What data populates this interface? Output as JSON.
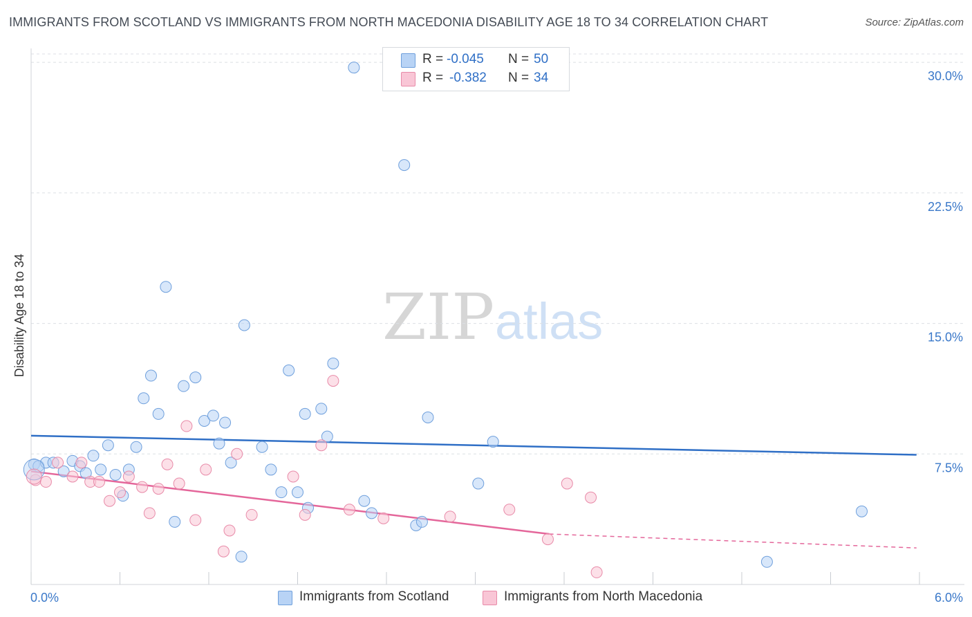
{
  "title": "IMMIGRANTS FROM SCOTLAND VS IMMIGRANTS FROM NORTH MACEDONIA DISABILITY AGE 18 TO 34 CORRELATION CHART",
  "source": "Source: ZipAtlas.com",
  "watermark": {
    "zip": "ZIP",
    "atlas": "atlas"
  },
  "legend": {
    "rows": [
      {
        "r_label": "R =",
        "r_value": "-0.045",
        "n_label": "N =",
        "n_value": "50",
        "color": "#b8d3f5"
      },
      {
        "r_label": "R =",
        "r_value": "-0.382",
        "n_label": "N =",
        "n_value": "34",
        "color": "#f9c6d6"
      }
    ]
  },
  "bottom_legend": [
    {
      "label": "Immigrants from Scotland",
      "color": "#b8d3f5"
    },
    {
      "label": "Immigrants from North Macedonia",
      "color": "#f9c6d6"
    }
  ],
  "chart_data": {
    "type": "scatter",
    "title": "IMMIGRANTS FROM SCOTLAND VS IMMIGRANTS FROM NORTH MACEDONIA DISABILITY AGE 18 TO 34 CORRELATION CHART",
    "xlabel": "",
    "ylabel": "Disability Age 18 to 34",
    "xlim": [
      0,
      6
    ],
    "ylim": [
      0,
      30.8
    ],
    "x_tick_labels": [
      "0.0%",
      "6.0%"
    ],
    "y_ticks": [
      7.5,
      15.0,
      22.5,
      30.0
    ],
    "y_tick_labels": [
      "7.5%",
      "15.0%",
      "22.5%",
      "30.0%"
    ],
    "grid": true,
    "legend_position": "top-center",
    "series": [
      {
        "name": "Immigrants from Scotland",
        "color": "#b8d3f5",
        "stroke": "#6e9fdc",
        "trend_color": "#2f6fc6",
        "trend": {
          "x": [
            0,
            5.98
          ],
          "y": [
            8.55,
            7.45
          ]
        },
        "points": [
          [
            0.02,
            6.9
          ],
          [
            0.05,
            6.8
          ],
          [
            0.1,
            7.0
          ],
          [
            0.15,
            7.0
          ],
          [
            0.22,
            6.5
          ],
          [
            0.28,
            7.1
          ],
          [
            0.33,
            6.8
          ],
          [
            0.37,
            6.4
          ],
          [
            0.42,
            7.4
          ],
          [
            0.47,
            6.6
          ],
          [
            0.52,
            8.0
          ],
          [
            0.57,
            6.3
          ],
          [
            0.62,
            5.1
          ],
          [
            0.66,
            6.6
          ],
          [
            0.71,
            7.9
          ],
          [
            0.76,
            10.7
          ],
          [
            0.81,
            12.0
          ],
          [
            0.86,
            9.8
          ],
          [
            0.91,
            17.1
          ],
          [
            0.97,
            3.6
          ],
          [
            1.03,
            11.4
          ],
          [
            1.11,
            11.9
          ],
          [
            1.17,
            9.4
          ],
          [
            1.23,
            9.7
          ],
          [
            1.27,
            8.1
          ],
          [
            1.31,
            9.3
          ],
          [
            1.35,
            7.0
          ],
          [
            1.42,
            1.6
          ],
          [
            1.44,
            14.9
          ],
          [
            1.56,
            7.9
          ],
          [
            1.62,
            6.6
          ],
          [
            1.69,
            5.3
          ],
          [
            1.74,
            12.3
          ],
          [
            1.8,
            5.3
          ],
          [
            1.85,
            9.8
          ],
          [
            1.87,
            4.4
          ],
          [
            1.96,
            10.1
          ],
          [
            2.0,
            8.5
          ],
          [
            2.04,
            12.7
          ],
          [
            2.18,
            29.7
          ],
          [
            2.25,
            4.8
          ],
          [
            2.3,
            4.1
          ],
          [
            2.52,
            24.1
          ],
          [
            2.6,
            3.4
          ],
          [
            2.64,
            3.6
          ],
          [
            2.68,
            9.6
          ],
          [
            3.02,
            5.8
          ],
          [
            3.12,
            8.2
          ],
          [
            4.97,
            1.3
          ],
          [
            5.61,
            4.2
          ]
        ]
      },
      {
        "name": "Immigrants from North Macedonia",
        "color": "#f9c6d6",
        "stroke": "#e88aa8",
        "trend_color": "#e4669a",
        "trend": {
          "x": [
            0,
            3.5
          ],
          "y": [
            6.5,
            2.9
          ]
        },
        "trend_ext": {
          "x": [
            3.5,
            5.98
          ],
          "y": [
            2.9,
            2.1
          ]
        },
        "points": [
          [
            0.03,
            6.0
          ],
          [
            0.1,
            5.9
          ],
          [
            0.18,
            7.0
          ],
          [
            0.28,
            6.2
          ],
          [
            0.34,
            7.0
          ],
          [
            0.4,
            5.9
          ],
          [
            0.46,
            5.9
          ],
          [
            0.53,
            4.8
          ],
          [
            0.6,
            5.3
          ],
          [
            0.66,
            6.2
          ],
          [
            0.75,
            5.6
          ],
          [
            0.8,
            4.1
          ],
          [
            0.86,
            5.5
          ],
          [
            0.92,
            6.9
          ],
          [
            1.0,
            5.8
          ],
          [
            1.05,
            9.1
          ],
          [
            1.11,
            3.7
          ],
          [
            1.18,
            6.6
          ],
          [
            1.3,
            1.9
          ],
          [
            1.34,
            3.1
          ],
          [
            1.39,
            7.5
          ],
          [
            1.49,
            4.0
          ],
          [
            1.77,
            6.2
          ],
          [
            1.85,
            4.0
          ],
          [
            1.96,
            8.0
          ],
          [
            2.04,
            11.7
          ],
          [
            2.15,
            4.3
          ],
          [
            2.38,
            3.8
          ],
          [
            2.83,
            3.9
          ],
          [
            3.23,
            4.3
          ],
          [
            3.49,
            2.6
          ],
          [
            3.62,
            5.8
          ],
          [
            3.82,
            0.7
          ],
          [
            3.78,
            5.0
          ]
        ]
      }
    ]
  }
}
